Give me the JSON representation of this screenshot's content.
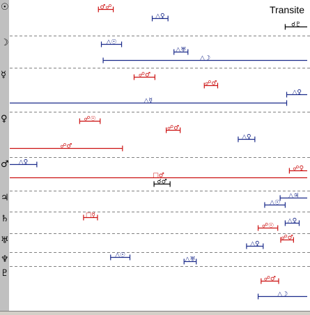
{
  "window": {
    "title": "Transite"
  },
  "colors": {
    "red": "#cc1010",
    "blue": "#1a2a8a",
    "black": "#000000",
    "separator": "#808080",
    "strip": "#c0c0c0"
  },
  "rows": [
    {
      "glyph": "☉",
      "y": 10
    },
    {
      "glyph": "☽",
      "y": 56
    },
    {
      "glyph": "☿",
      "y": 101
    },
    {
      "glyph": "♀",
      "y": 163
    },
    {
      "glyph": "♂",
      "y": 231
    },
    {
      "glyph": "♃",
      "y": 277
    },
    {
      "glyph": "♄",
      "y": 311
    },
    {
      "glyph": "♅",
      "y": 342
    },
    {
      "glyph": "♆",
      "y": 368
    },
    {
      "glyph": "♇",
      "y": 388
    }
  ],
  "chart_data": {
    "type": "timeline",
    "title": "Transite",
    "x_range": [
      0,
      100
    ],
    "segments": [
      {
        "label": "♂☍",
        "color": "red",
        "x0": 29.8,
        "x1": 34.8,
        "row": 0
      },
      {
        "label": "△♀",
        "color": "blue",
        "x0": 47.9,
        "x1": 53.2,
        "row": 0
      },
      {
        "label": "☌♇",
        "color": "black",
        "x0": 92.6,
        "x1": 100,
        "row": 0
      },
      {
        "label": "△☉",
        "color": "blue",
        "x0": 30.8,
        "x1": 37.6,
        "row": 1
      },
      {
        "label": "△♅",
        "color": "blue",
        "x0": 55.2,
        "x1": 59.9,
        "row": 1
      },
      {
        "label": "△☽",
        "color": "blue",
        "x0": 31.4,
        "x1": 100,
        "row": 1
      },
      {
        "label": "☍♂",
        "color": "red",
        "x0": 41.8,
        "x1": 48.8,
        "row": 2
      },
      {
        "label": "☍♂",
        "color": "red",
        "x0": 65.4,
        "x1": 69.9,
        "row": 2
      },
      {
        "label": "△♀",
        "color": "blue",
        "x0": 93.1,
        "x1": 100,
        "row": 2
      },
      {
        "label": "△☿",
        "color": "blue",
        "x0": 0,
        "x1": 93.1,
        "row": 2
      },
      {
        "label": "☍☉",
        "color": "red",
        "x0": 23.5,
        "x1": 30.4,
        "row": 3
      },
      {
        "label": "☍♂",
        "color": "red",
        "x0": 52.6,
        "x1": 57.3,
        "row": 3
      },
      {
        "label": "△♀",
        "color": "blue",
        "x0": 76.8,
        "x1": 82.4,
        "row": 3
      },
      {
        "label": "☍♂",
        "color": "red",
        "x0": 0,
        "x1": 37.9,
        "row": 3
      },
      {
        "label": "△♀",
        "color": "blue",
        "x0": 0,
        "x1": 9.1,
        "row": 4
      },
      {
        "label": "☍♀",
        "color": "red",
        "x0": 94.0,
        "x1": 100,
        "row": 4
      },
      {
        "label": "□♂",
        "color": "red",
        "x0": 0,
        "x1": 100,
        "row": 4
      },
      {
        "label": "☌♂",
        "color": "black",
        "x0": 48.5,
        "x1": 53.9,
        "row": 4
      },
      {
        "label": "△♃",
        "color": "blue",
        "x0": 90.9,
        "x1": 100,
        "row": 5
      },
      {
        "label": "△☉",
        "color": "blue",
        "x0": 85.7,
        "x1": 92.6,
        "row": 5
      },
      {
        "label": "□☿",
        "color": "red",
        "x0": 24.8,
        "x1": 29.5,
        "row": 6
      },
      {
        "label": "△♀",
        "color": "blue",
        "x0": 92.6,
        "x1": 97.3,
        "row": 6
      },
      {
        "label": "☍☉",
        "color": "red",
        "x0": 83.5,
        "x1": 90.1,
        "row": 6
      },
      {
        "label": "☍♂",
        "color": "red",
        "x0": 91.1,
        "x1": 95.4,
        "row": 7
      },
      {
        "label": "△♀",
        "color": "blue",
        "x0": 79.6,
        "x1": 85.2,
        "row": 7
      },
      {
        "label": "△☉",
        "color": "blue",
        "x0": 33.9,
        "x1": 40.4,
        "row": 8
      },
      {
        "label": "△♅",
        "color": "blue",
        "x0": 58.6,
        "x1": 62.7,
        "row": 8
      },
      {
        "label": "☍♂",
        "color": "red",
        "x0": 84.5,
        "x1": 90.4,
        "row": 9
      },
      {
        "label": "△☽",
        "color": "blue",
        "x0": 83.5,
        "x1": 100,
        "row": 9
      }
    ]
  }
}
